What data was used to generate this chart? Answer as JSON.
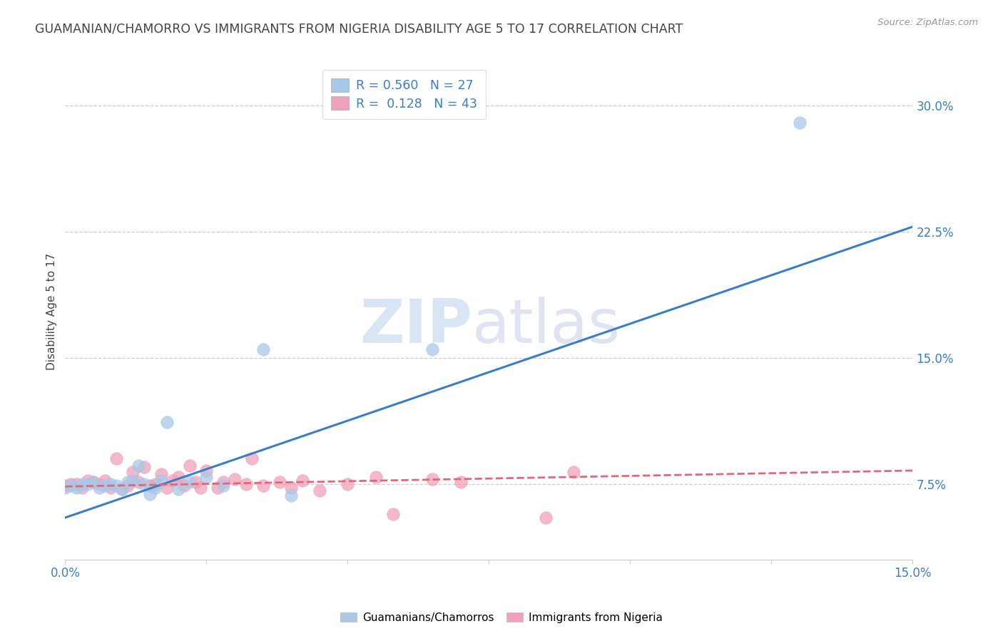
{
  "title": "GUAMANIAN/CHAMORRO VS IMMIGRANTS FROM NIGERIA DISABILITY AGE 5 TO 17 CORRELATION CHART",
  "source": "Source: ZipAtlas.com",
  "ylabel": "Disability Age 5 to 17",
  "yticks": [
    0.075,
    0.15,
    0.225,
    0.3
  ],
  "ytick_labels": [
    "7.5%",
    "15.0%",
    "22.5%",
    "30.0%"
  ],
  "xlim": [
    0.0,
    0.15
  ],
  "ylim": [
    0.03,
    0.325
  ],
  "legend_r1": "R = 0.560",
  "legend_n1": "N = 27",
  "legend_r2": "R =  0.128",
  "legend_n2": "N = 43",
  "color_blue": "#a8c8e8",
  "color_pink": "#f0a0b8",
  "color_blue_line": "#3a7ec6",
  "color_pink_line": "#e06878",
  "color_title": "#555555",
  "blue_scatter": {
    "x": [
      0.0,
      0.001,
      0.002,
      0.003,
      0.004,
      0.005,
      0.006,
      0.007,
      0.008,
      0.009,
      0.01,
      0.011,
      0.012,
      0.013,
      0.014,
      0.015,
      0.016,
      0.017,
      0.018,
      0.02,
      0.022,
      0.025,
      0.028,
      0.035,
      0.04,
      0.065,
      0.13
    ],
    "y": [
      0.073,
      0.074,
      0.073,
      0.075,
      0.075,
      0.076,
      0.073,
      0.074,
      0.075,
      0.074,
      0.072,
      0.076,
      0.077,
      0.086,
      0.075,
      0.069,
      0.073,
      0.077,
      0.112,
      0.072,
      0.076,
      0.079,
      0.074,
      0.155,
      0.068,
      0.155,
      0.29
    ]
  },
  "pink_scatter": {
    "x": [
      0.0,
      0.001,
      0.002,
      0.003,
      0.004,
      0.005,
      0.006,
      0.007,
      0.008,
      0.009,
      0.01,
      0.011,
      0.012,
      0.013,
      0.014,
      0.015,
      0.016,
      0.017,
      0.018,
      0.019,
      0.02,
      0.021,
      0.022,
      0.023,
      0.024,
      0.025,
      0.027,
      0.028,
      0.03,
      0.032,
      0.033,
      0.035,
      0.038,
      0.04,
      0.042,
      0.045,
      0.05,
      0.055,
      0.058,
      0.065,
      0.07,
      0.085,
      0.09
    ],
    "y": [
      0.074,
      0.075,
      0.075,
      0.073,
      0.077,
      0.076,
      0.075,
      0.077,
      0.073,
      0.09,
      0.072,
      0.074,
      0.082,
      0.076,
      0.085,
      0.074,
      0.075,
      0.081,
      0.073,
      0.077,
      0.079,
      0.074,
      0.086,
      0.076,
      0.073,
      0.083,
      0.073,
      0.076,
      0.078,
      0.075,
      0.09,
      0.074,
      0.076,
      0.073,
      0.077,
      0.071,
      0.075,
      0.079,
      0.057,
      0.078,
      0.076,
      0.055,
      0.082
    ]
  },
  "blue_line": {
    "x0": 0.0,
    "y0": 0.055,
    "x1": 0.15,
    "y1": 0.228
  },
  "pink_line": {
    "x0": 0.0,
    "y0": 0.0735,
    "x1": 0.15,
    "y1": 0.083
  }
}
